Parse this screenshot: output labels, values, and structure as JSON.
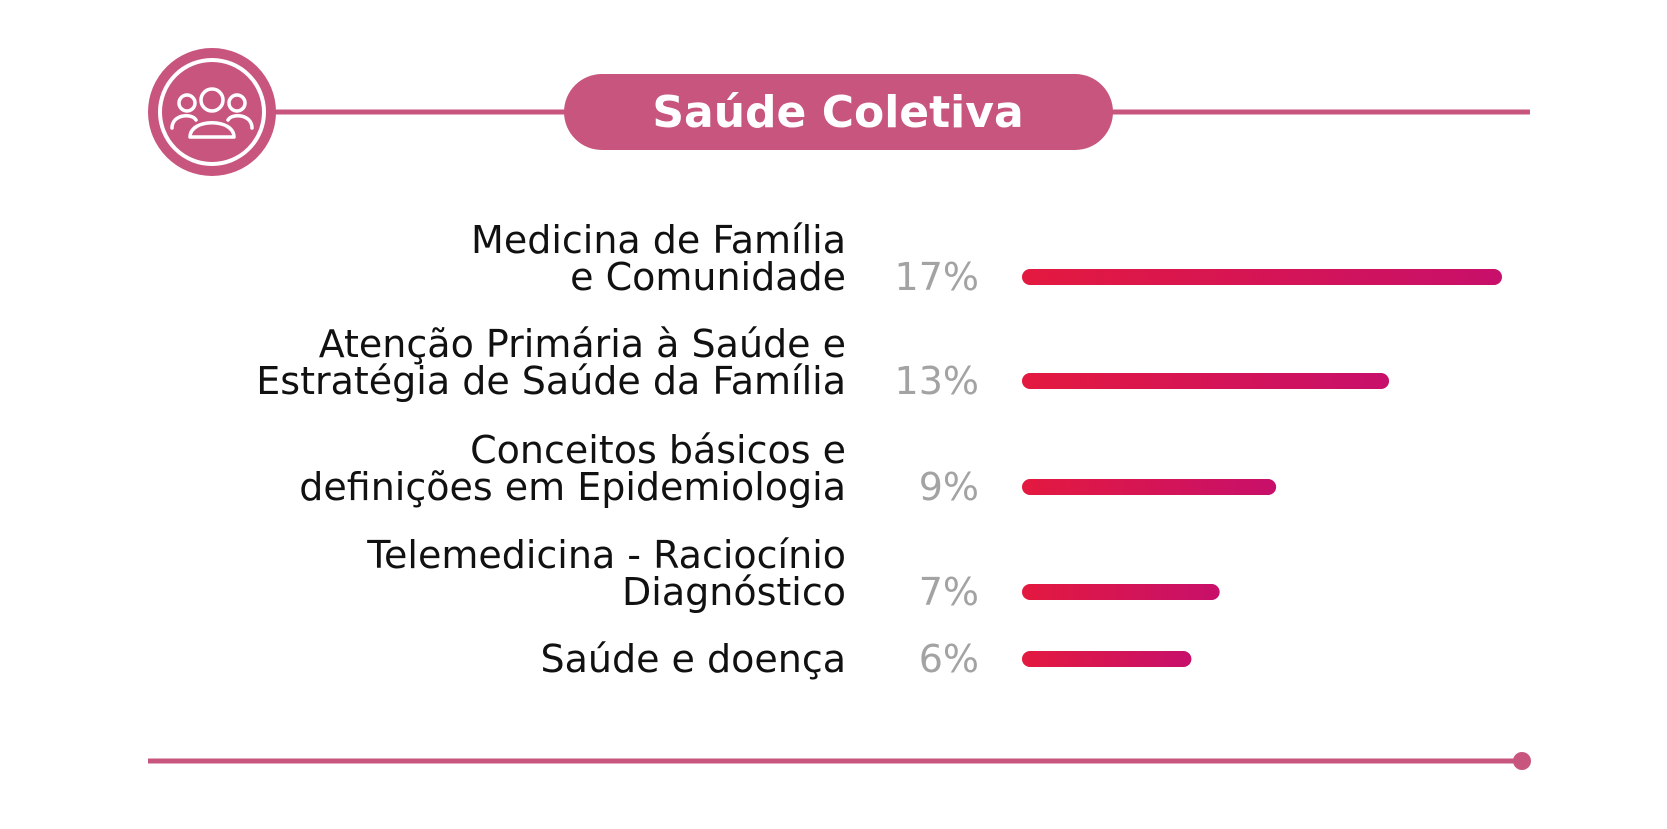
{
  "chart_data": {
    "type": "bar",
    "orientation": "horizontal",
    "title": "Saúde Coletiva",
    "categories": [
      [
        "Medicina de Família",
        "e Comunidade"
      ],
      [
        "Atenção Primária à Saúde e",
        "Estratégia de Saúde da Família"
      ],
      [
        "Conceitos básicos e",
        "definições em Epidemiologia"
      ],
      [
        "Telemedicina - Raciocínio",
        "Diagnóstico"
      ],
      [
        "Saúde e doença"
      ]
    ],
    "values": [
      17,
      13,
      9,
      7,
      6
    ],
    "value_labels": [
      "17%",
      "13%",
      "9%",
      "7%",
      "6%"
    ],
    "unit": "%",
    "xlim": [
      0,
      17
    ],
    "grid": false,
    "legend": "none"
  },
  "header": {
    "icon": "people-group-icon"
  },
  "colors": {
    "accent": "#c8557d",
    "bar_start": "#e3193f",
    "bar_end": "#c7106b",
    "label": "#111111",
    "value": "#a3a3a3",
    "background": "#ffffff"
  }
}
